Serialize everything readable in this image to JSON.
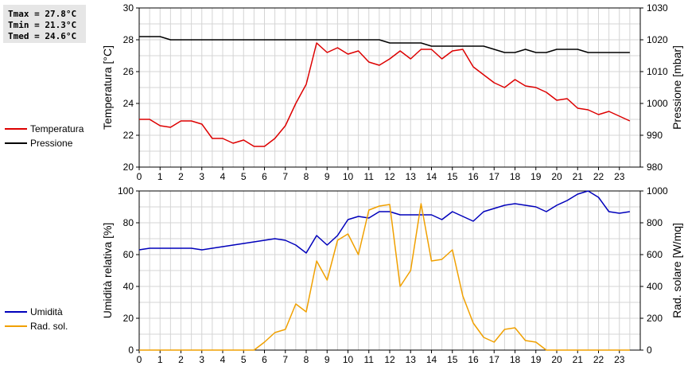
{
  "stats": {
    "tmax": "Tmax = 27.8°C",
    "tmin": "Tmin = 21.3°C",
    "tmed": "Tmed = 24.6°C"
  },
  "chart_data": [
    {
      "type": "line",
      "x_ticks": [
        0,
        1,
        2,
        3,
        4,
        5,
        6,
        7,
        8,
        9,
        10,
        11,
        12,
        13,
        14,
        15,
        16,
        17,
        18,
        19,
        20,
        21,
        22,
        23
      ],
      "xlim": [
        0,
        24
      ],
      "ylabel": "Temperatura [°C]",
      "ylim": [
        20,
        30
      ],
      "y_ticks": [
        20,
        22,
        24,
        26,
        28,
        30
      ],
      "ylabel_right": "Pressione [mbar]",
      "ylim_right": [
        980,
        1030
      ],
      "y_ticks_right": [
        980,
        990,
        1000,
        1010,
        1020,
        1030
      ],
      "grid": true,
      "legend_position": "left",
      "series": [
        {
          "name": "Temperatura",
          "color": "#dd0000",
          "axis": "left",
          "x": [
            0,
            0.5,
            1,
            1.5,
            2,
            2.5,
            3,
            3.5,
            4,
            4.5,
            5,
            5.5,
            6,
            6.5,
            7,
            7.5,
            8,
            8.5,
            9,
            9.5,
            10,
            10.5,
            11,
            11.5,
            12,
            12.5,
            13,
            13.5,
            14,
            14.5,
            15,
            15.5,
            16,
            16.5,
            17,
            17.5,
            18,
            18.5,
            19,
            19.5,
            20,
            20.5,
            21,
            21.5,
            22,
            22.5,
            23,
            23.5
          ],
          "values": [
            23.0,
            23.0,
            22.6,
            22.5,
            22.9,
            22.9,
            22.7,
            21.8,
            21.8,
            21.5,
            21.7,
            21.3,
            21.3,
            21.8,
            22.6,
            24.0,
            25.2,
            27.8,
            27.2,
            27.5,
            27.1,
            27.3,
            26.6,
            26.4,
            26.8,
            27.3,
            26.8,
            27.4,
            27.4,
            26.8,
            27.3,
            27.4,
            26.3,
            25.8,
            25.3,
            25.0,
            25.5,
            25.1,
            25.0,
            24.7,
            24.2,
            24.3,
            23.7,
            23.6,
            23.3,
            23.5,
            23.2,
            22.9
          ]
        },
        {
          "name": "Pressione",
          "color": "#000000",
          "axis": "right",
          "x": [
            0,
            0.5,
            1,
            1.5,
            2,
            2.5,
            3,
            3.5,
            4,
            4.5,
            5,
            5.5,
            6,
            6.5,
            7,
            7.5,
            8,
            8.5,
            9,
            9.5,
            10,
            10.5,
            11,
            11.5,
            12,
            12.5,
            13,
            13.5,
            14,
            14.5,
            15,
            15.5,
            16,
            16.5,
            17,
            17.5,
            18,
            18.5,
            19,
            19.5,
            20,
            20.5,
            21,
            21.5,
            22,
            22.5,
            23,
            23.5
          ],
          "values": [
            1021,
            1021,
            1021,
            1020,
            1020,
            1020,
            1020,
            1020,
            1020,
            1020,
            1020,
            1020,
            1020,
            1020,
            1020,
            1020,
            1020,
            1020,
            1020,
            1020,
            1020,
            1020,
            1020,
            1020,
            1019,
            1019,
            1019,
            1019,
            1018,
            1018,
            1018,
            1018,
            1018,
            1018,
            1017,
            1016,
            1016,
            1017,
            1016,
            1016,
            1017,
            1017,
            1017,
            1016,
            1016,
            1016,
            1016,
            1016
          ]
        }
      ]
    },
    {
      "type": "line",
      "x_ticks": [
        0,
        1,
        2,
        3,
        4,
        5,
        6,
        7,
        8,
        9,
        10,
        11,
        12,
        13,
        14,
        15,
        16,
        17,
        18,
        19,
        20,
        21,
        22,
        23
      ],
      "xlim": [
        0,
        24
      ],
      "ylabel": "Umidità relativa [%]",
      "ylim": [
        0,
        100
      ],
      "y_ticks": [
        0,
        20,
        40,
        60,
        80,
        100
      ],
      "ylabel_right": "Rad. solare [W/mq]",
      "ylim_right": [
        0,
        1000
      ],
      "y_ticks_right": [
        0,
        200,
        400,
        600,
        800,
        1000
      ],
      "grid": true,
      "legend_position": "left",
      "series": [
        {
          "name": "Umidità",
          "color": "#0000bb",
          "axis": "left",
          "x": [
            0,
            0.5,
            1,
            1.5,
            2,
            2.5,
            3,
            3.5,
            4,
            4.5,
            5,
            5.5,
            6,
            6.5,
            7,
            7.5,
            8,
            8.5,
            9,
            9.5,
            10,
            10.5,
            11,
            11.5,
            12,
            12.5,
            13,
            13.5,
            14,
            14.5,
            15,
            15.5,
            16,
            16.5,
            17,
            17.5,
            18,
            18.5,
            19,
            19.5,
            20,
            20.5,
            21,
            21.5,
            22,
            22.5,
            23,
            23.5
          ],
          "values": [
            63,
            64,
            64,
            64,
            64,
            64,
            63,
            64,
            65,
            66,
            67,
            68,
            69,
            70,
            69,
            66,
            61,
            72,
            66,
            72,
            82,
            84,
            83,
            87,
            87,
            85,
            85,
            85,
            85,
            82,
            87,
            84,
            81,
            87,
            89,
            91,
            92,
            91,
            90,
            87,
            91,
            94,
            98,
            100,
            96,
            87,
            86,
            87
          ]
        },
        {
          "name": "Rad. sol.",
          "color": "#f0a000",
          "axis": "right",
          "x": [
            0,
            0.5,
            1,
            1.5,
            2,
            2.5,
            3,
            3.5,
            4,
            4.5,
            5,
            5.5,
            6,
            6.5,
            7,
            7.5,
            8,
            8.5,
            9,
            9.5,
            10,
            10.5,
            11,
            11.5,
            12,
            12.5,
            13,
            13.5,
            14,
            14.5,
            15,
            15.5,
            16,
            16.5,
            17,
            17.5,
            18,
            18.5,
            19,
            19.5,
            20,
            20.5,
            21,
            21.5,
            22,
            22.5,
            23,
            23.5
          ],
          "values": [
            0,
            0,
            0,
            0,
            0,
            0,
            0,
            0,
            0,
            0,
            0,
            0,
            50,
            110,
            130,
            290,
            240,
            560,
            440,
            690,
            730,
            600,
            880,
            905,
            915,
            400,
            500,
            920,
            560,
            570,
            630,
            340,
            170,
            80,
            50,
            130,
            140,
            60,
            50,
            0,
            0,
            0,
            0,
            0,
            0,
            0,
            0,
            0
          ]
        }
      ]
    }
  ]
}
